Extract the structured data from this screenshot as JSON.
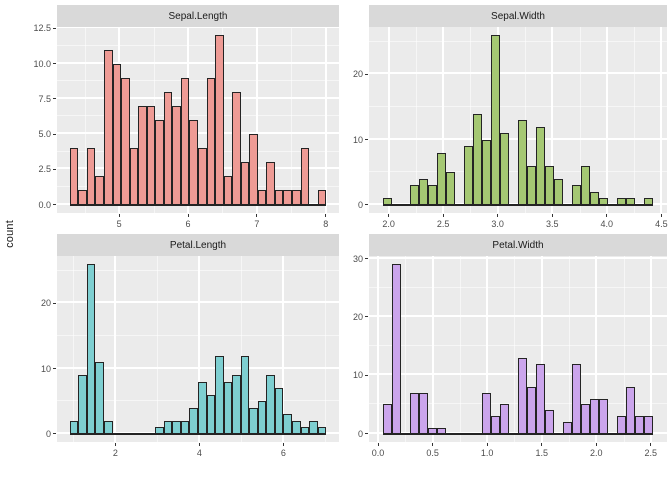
{
  "figure": {
    "y_axis_title": "count"
  },
  "style": {
    "background": "#ffffff",
    "panel_background": "#ebebeb",
    "strip_background": "#d9d9d9",
    "grid_major_color": "#ffffff",
    "grid_minor_color": "rgba(255,255,255,0.55)",
    "bar_border_color": "#242424",
    "tick_label_color": "#4d4d4d",
    "strip_text_color": "#1a1a1a"
  },
  "chart_data": {
    "type": "histogram",
    "layout": "2x2 facet grid, free scales",
    "ylabel": "count",
    "facets": [
      {
        "title": "Sepal.Length",
        "fill": "#ee9b95",
        "bin_start": 4.28276,
        "bin_width": 0.124138,
        "counts": [
          4,
          1,
          4,
          2,
          11,
          10,
          9,
          4,
          7,
          7,
          6,
          8,
          7,
          9,
          6,
          4,
          9,
          12,
          2,
          8,
          3,
          5,
          1,
          3,
          1,
          1,
          1,
          4,
          0,
          1
        ],
        "xdomain": [
          4.09655,
          8.1931
        ],
        "ydomain": [
          -0.6,
          12.6
        ],
        "xticks": [
          {
            "v": 5,
            "l": "5"
          },
          {
            "v": 6,
            "l": "6"
          },
          {
            "v": 7,
            "l": "7"
          },
          {
            "v": 8,
            "l": "8"
          }
        ],
        "yticks": [
          {
            "v": 0,
            "l": "0.0"
          },
          {
            "v": 2.5,
            "l": "2.5"
          },
          {
            "v": 5,
            "l": "5.0"
          },
          {
            "v": 7.5,
            "l": "7.5"
          },
          {
            "v": 10,
            "l": "10.0"
          },
          {
            "v": 12.5,
            "l": "12.5"
          }
        ],
        "xminor": [
          4.5,
          5.5,
          6.5,
          7.5
        ],
        "yminor": [
          1.25,
          3.75,
          6.25,
          8.75,
          11.25
        ]
      },
      {
        "title": "Sepal.Width",
        "fill": "#a5c873",
        "bin_start": 1.944828,
        "bin_width": 0.082759,
        "counts": [
          1,
          0,
          0,
          3,
          4,
          3,
          8,
          5,
          0,
          9,
          14,
          10,
          26,
          11,
          0,
          13,
          6,
          12,
          6,
          4,
          0,
          3,
          6,
          2,
          1,
          0,
          1,
          1,
          0,
          1
        ],
        "xdomain": [
          1.82069,
          4.551724
        ],
        "ydomain": [
          -1.3,
          27.3
        ],
        "xticks": [
          {
            "v": 2.0,
            "l": "2.0"
          },
          {
            "v": 2.5,
            "l": "2.5"
          },
          {
            "v": 3.0,
            "l": "3.0"
          },
          {
            "v": 3.5,
            "l": "3.5"
          },
          {
            "v": 4.0,
            "l": "4.0"
          },
          {
            "v": 4.5,
            "l": "4.5"
          }
        ],
        "yticks": [
          {
            "v": 0,
            "l": "0"
          },
          {
            "v": 10,
            "l": "10"
          },
          {
            "v": 20,
            "l": "20"
          }
        ],
        "xminor": [
          2.25,
          2.75,
          3.25,
          3.75,
          4.25
        ],
        "yminor": [
          5,
          15,
          25
        ]
      },
      {
        "title": "Petal.Length",
        "fill": "#7ecfd1",
        "bin_start": 0.915517,
        "bin_width": 0.203448,
        "counts": [
          2,
          9,
          26,
          11,
          2,
          0,
          0,
          0,
          0,
          0,
          1,
          2,
          2,
          2,
          4,
          8,
          6,
          12,
          8,
          9,
          12,
          4,
          5,
          9,
          7,
          3,
          2,
          1,
          2,
          1
        ],
        "xdomain": [
          0.610345,
          7.324138
        ],
        "ydomain": [
          -1.3,
          27.3
        ],
        "xticks": [
          {
            "v": 2,
            "l": "2"
          },
          {
            "v": 4,
            "l": "4"
          },
          {
            "v": 6,
            "l": "6"
          }
        ],
        "yticks": [
          {
            "v": 0,
            "l": "0"
          },
          {
            "v": 10,
            "l": "10"
          },
          {
            "v": 20,
            "l": "20"
          }
        ],
        "xminor": [
          1,
          3,
          5,
          7
        ],
        "yminor": [
          5,
          15,
          25
        ]
      },
      {
        "title": "Petal.Width",
        "fill": "#cba5ec",
        "bin_start": 0.041379,
        "bin_width": 0.082759,
        "counts": [
          5,
          29,
          0,
          7,
          7,
          1,
          1,
          0,
          0,
          0,
          0,
          7,
          3,
          5,
          0,
          13,
          8,
          12,
          4,
          0,
          2,
          12,
          5,
          6,
          6,
          0,
          3,
          8,
          3,
          3
        ],
        "xdomain": [
          -0.082759,
          2.648276
        ],
        "ydomain": [
          -1.45,
          30.45
        ],
        "xticks": [
          {
            "v": 0.0,
            "l": "0.0"
          },
          {
            "v": 0.5,
            "l": "0.5"
          },
          {
            "v": 1.0,
            "l": "1.0"
          },
          {
            "v": 1.5,
            "l": "1.5"
          },
          {
            "v": 2.0,
            "l": "2.0"
          },
          {
            "v": 2.5,
            "l": "2.5"
          }
        ],
        "yticks": [
          {
            "v": 0,
            "l": "0"
          },
          {
            "v": 10,
            "l": "10"
          },
          {
            "v": 20,
            "l": "20"
          },
          {
            "v": 30,
            "l": "30"
          }
        ],
        "xminor": [
          0.25,
          0.75,
          1.25,
          1.75,
          2.25
        ],
        "yminor": [
          5,
          15,
          25
        ]
      }
    ]
  }
}
